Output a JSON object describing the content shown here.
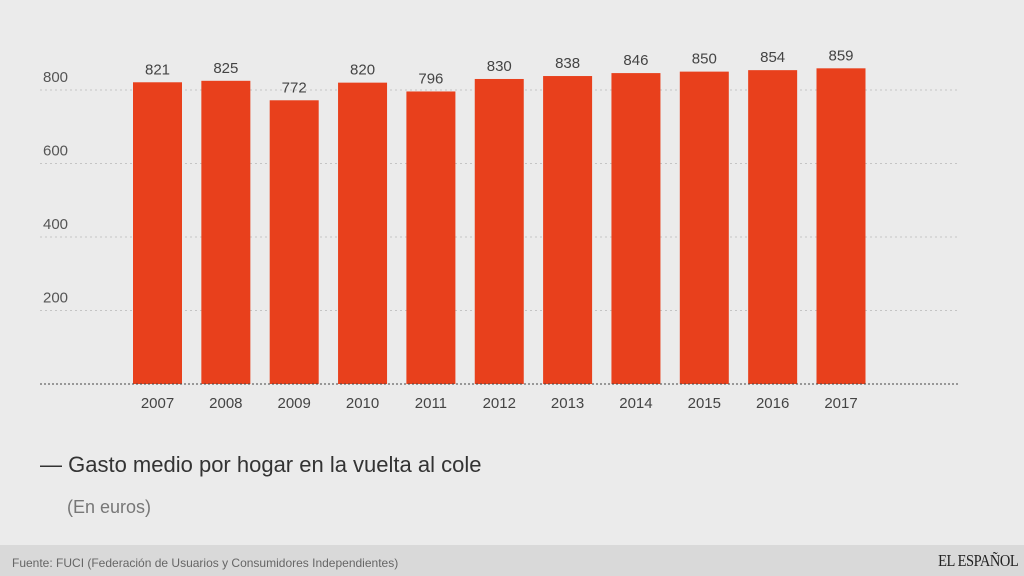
{
  "chart_data": {
    "type": "bar",
    "categories": [
      "2007",
      "2008",
      "2009",
      "2010",
      "2011",
      "2012",
      "2013",
      "2014",
      "2015",
      "2016",
      "2017"
    ],
    "values": [
      821,
      825,
      772,
      820,
      796,
      830,
      838,
      846,
      850,
      854,
      859
    ],
    "title": "— Gasto medio por hogar en la vuelta al cole",
    "subtitle": "(En euros)",
    "yticks": [
      200,
      400,
      600,
      800
    ],
    "ylim": [
      0,
      800
    ],
    "grid": true,
    "bar_color": "#e8401c"
  },
  "footer": {
    "source": "Fuente: FUCI (Federación de Usuarios y Consumidores Independientes)",
    "logo": "EL ESPAÑOL"
  }
}
